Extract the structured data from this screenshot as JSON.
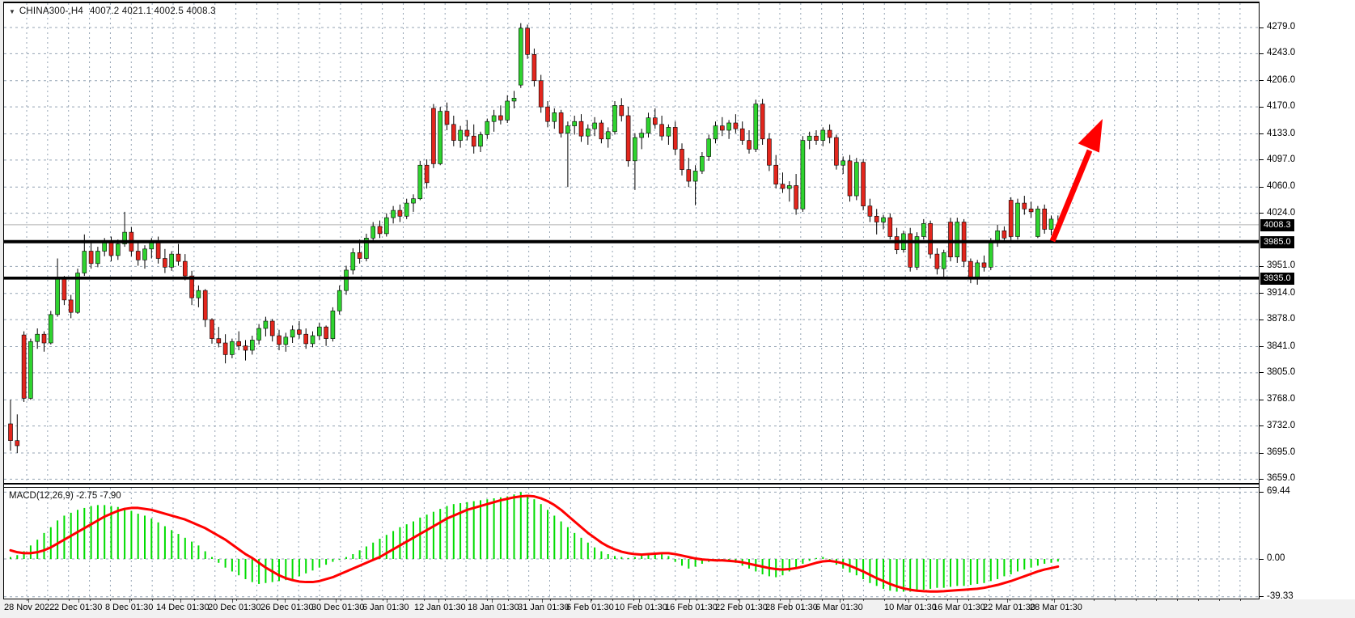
{
  "header": {
    "dropdown_icon": "▼",
    "symbol_period": "CHINA300-,H4",
    "ohlc_line": "4007.2 4021.1 4002.5 4008.3",
    "open": "4007.2",
    "high": "4021.1",
    "low": "4002.5",
    "close": "4008.3"
  },
  "macd_panel": {
    "label": "MACD(12,26,9) -2.75 -7.90",
    "indicator_name": "MACD(12,26,9)",
    "macd_value": "-2.75",
    "signal_value": "-7.90",
    "axis_labels": [
      "69.44",
      "0.00",
      "-39.33"
    ],
    "axis_values": [
      69.44,
      0.0,
      -39.33
    ]
  },
  "price_axis": {
    "tick_values": [
      4279.0,
      4243.0,
      4206.0,
      4170.0,
      4133.0,
      4097.0,
      4060.0,
      4024.0,
      3951.0,
      3914.0,
      3878.0,
      3841.0,
      3805.0,
      3768.0,
      3732.0,
      3695.0,
      3659.0
    ],
    "tags": [
      {
        "label": "4008.3",
        "value": 4008.3,
        "kind": "current-price"
      },
      {
        "label": "3985.0",
        "value": 3985.0,
        "kind": "horizontal-line"
      },
      {
        "label": "3935.0",
        "value": 3935.0,
        "kind": "horizontal-line"
      }
    ]
  },
  "annotations": {
    "hlines": [
      3985.0,
      3935.0
    ],
    "current_price": 4008.3,
    "arrow": {
      "description": "red up-trend arrow",
      "color": "#ff0000",
      "from_price": 3982,
      "to_price": 4152
    }
  },
  "colors": {
    "bull": "#2fd32f",
    "bear": "#e3261d",
    "candle_border": "#000000",
    "wick": "#000000",
    "grid": "#94a3b3",
    "hline": "#000000",
    "price_line": "#b0b0b0",
    "macd_hist": "#00dd00",
    "macd_signal": "#ff0000",
    "arrow": "#ff0000",
    "tag_bg": "#000000",
    "tag_fg": "#ffffff"
  },
  "chart_data": {
    "type": "candlestick+macd",
    "title": "CHINA300-,H4",
    "timeframe": "H4",
    "ylabel_right_main": "price",
    "ylabel_right_macd": "MACD",
    "main_axis_range": [
      3659.0,
      4279.0
    ],
    "macd_axis_range": [
      -39.33,
      69.44
    ],
    "x_labels": [
      "28 Nov 2022",
      "2 Dec 01:30",
      "8 Dec 01:30",
      "14 Dec 01:30",
      "20 Dec 01:30",
      "26 Dec 01:30",
      "30 Dec 01:30",
      "6 Jan 01:30",
      "12 Jan 01:30",
      "18 Jan 01:30",
      "31 Jan 01:30",
      "6 Feb 01:30",
      "10 Feb 01:30",
      "16 Feb 01:30",
      "22 Feb 01:30",
      "28 Feb 01:30",
      "6 Mar 01:30",
      "10 Mar 01:30",
      "16 Mar 01:30",
      "22 Mar 01:30",
      "28 Mar 01:30"
    ],
    "candles_ohlc": [
      [
        3735,
        3768,
        3698,
        3712
      ],
      [
        3712,
        3748,
        3695,
        3705
      ],
      [
        3857,
        3862,
        3765,
        3770
      ],
      [
        3770,
        3852,
        3768,
        3848
      ],
      [
        3848,
        3866,
        3838,
        3858
      ],
      [
        3858,
        3862,
        3834,
        3846
      ],
      [
        3846,
        3890,
        3844,
        3885
      ],
      [
        3885,
        3962,
        3882,
        3936
      ],
      [
        3936,
        3938,
        3898,
        3905
      ],
      [
        3905,
        3912,
        3880,
        3888
      ],
      [
        3888,
        3948,
        3886,
        3942
      ],
      [
        3942,
        3995,
        3938,
        3972
      ],
      [
        3972,
        3985,
        3948,
        3955
      ],
      [
        3955,
        3978,
        3950,
        3972
      ],
      [
        3972,
        3990,
        3965,
        3985
      ],
      [
        3985,
        3992,
        3958,
        3966
      ],
      [
        3966,
        3988,
        3960,
        3982
      ],
      [
        3982,
        4026,
        3978,
        3998
      ],
      [
        3998,
        4005,
        3965,
        3972
      ],
      [
        3972,
        3985,
        3952,
        3960
      ],
      [
        3960,
        3980,
        3948,
        3975
      ],
      [
        3975,
        3990,
        3962,
        3985
      ],
      [
        3985,
        3992,
        3955,
        3962
      ],
      [
        3962,
        3975,
        3942,
        3950
      ],
      [
        3950,
        3972,
        3945,
        3968
      ],
      [
        3968,
        3982,
        3952,
        3958
      ],
      [
        3958,
        3968,
        3932,
        3938
      ],
      [
        3938,
        3945,
        3898,
        3908
      ],
      [
        3908,
        3925,
        3895,
        3918
      ],
      [
        3918,
        3920,
        3868,
        3878
      ],
      [
        3878,
        3880,
        3845,
        3852
      ],
      [
        3852,
        3868,
        3840,
        3846
      ],
      [
        3846,
        3858,
        3818,
        3830
      ],
      [
        3830,
        3852,
        3825,
        3848
      ],
      [
        3848,
        3862,
        3836,
        3842
      ],
      [
        3842,
        3850,
        3822,
        3836
      ],
      [
        3836,
        3856,
        3830,
        3850
      ],
      [
        3850,
        3872,
        3844,
        3866
      ],
      [
        3866,
        3882,
        3855,
        3876
      ],
      [
        3876,
        3879,
        3848,
        3856
      ],
      [
        3856,
        3864,
        3836,
        3844
      ],
      [
        3844,
        3860,
        3834,
        3854
      ],
      [
        3854,
        3870,
        3846,
        3864
      ],
      [
        3864,
        3876,
        3852,
        3858
      ],
      [
        3858,
        3866,
        3838,
        3845
      ],
      [
        3845,
        3862,
        3840,
        3856
      ],
      [
        3856,
        3874,
        3850,
        3868
      ],
      [
        3868,
        3870,
        3842,
        3852
      ],
      [
        3852,
        3895,
        3848,
        3890
      ],
      [
        3890,
        3925,
        3885,
        3918
      ],
      [
        3918,
        3952,
        3912,
        3946
      ],
      [
        3946,
        3976,
        3940,
        3970
      ],
      [
        3970,
        3988,
        3955,
        3962
      ],
      [
        3962,
        3996,
        3958,
        3990
      ],
      [
        3990,
        4012,
        3984,
        4006
      ],
      [
        4006,
        4014,
        3990,
        3996
      ],
      [
        3996,
        4024,
        3992,
        4018
      ],
      [
        4018,
        4034,
        4010,
        4028
      ],
      [
        4028,
        4036,
        4012,
        4020
      ],
      [
        4020,
        4044,
        4016,
        4038
      ],
      [
        4038,
        4050,
        4026,
        4044
      ],
      [
        4044,
        4096,
        4042,
        4090
      ],
      [
        4090,
        4098,
        4058,
        4066
      ],
      [
        4168,
        4174,
        4086,
        4092
      ],
      [
        4092,
        4170,
        4090,
        4164
      ],
      [
        4164,
        4176,
        4138,
        4146
      ],
      [
        4146,
        4158,
        4116,
        4124
      ],
      [
        4124,
        4144,
        4114,
        4138
      ],
      [
        4138,
        4152,
        4124,
        4130
      ],
      [
        4130,
        4146,
        4106,
        4116
      ],
      [
        4116,
        4136,
        4108,
        4132
      ],
      [
        4132,
        4154,
        4126,
        4150
      ],
      [
        4150,
        4166,
        4136,
        4158
      ],
      [
        4158,
        4172,
        4146,
        4152
      ],
      [
        4152,
        4186,
        4148,
        4178
      ],
      [
        4178,
        4192,
        4168,
        4182
      ],
      [
        4200,
        4285,
        4196,
        4278
      ],
      [
        4278,
        4283,
        4236,
        4242
      ],
      [
        4242,
        4250,
        4198,
        4206
      ],
      [
        4206,
        4214,
        4162,
        4170
      ],
      [
        4170,
        4178,
        4142,
        4150
      ],
      [
        4150,
        4168,
        4140,
        4162
      ],
      [
        4162,
        4166,
        4128,
        4134
      ],
      [
        4134,
        4150,
        4060,
        4144
      ],
      [
        4144,
        4158,
        4132,
        4150
      ],
      [
        4150,
        4160,
        4122,
        4130
      ],
      [
        4130,
        4146,
        4118,
        4140
      ],
      [
        4140,
        4156,
        4130,
        4148
      ],
      [
        4148,
        4152,
        4120,
        4126
      ],
      [
        4126,
        4142,
        4114,
        4136
      ],
      [
        4136,
        4178,
        4132,
        4172
      ],
      [
        4172,
        4182,
        4150,
        4158
      ],
      [
        4158,
        4170,
        4088,
        4096
      ],
      [
        4096,
        4134,
        4056,
        4128
      ],
      [
        4128,
        4140,
        4112,
        4134
      ],
      [
        4134,
        4162,
        4128,
        4155
      ],
      [
        4155,
        4168,
        4140,
        4146
      ],
      [
        4146,
        4158,
        4124,
        4130
      ],
      [
        4130,
        4146,
        4118,
        4142
      ],
      [
        4142,
        4150,
        4104,
        4112
      ],
      [
        4112,
        4120,
        4076,
        4084
      ],
      [
        4084,
        4100,
        4060,
        4068
      ],
      [
        4068,
        4090,
        4035,
        4082
      ],
      [
        4082,
        4108,
        4078,
        4102
      ],
      [
        4102,
        4132,
        4096,
        4126
      ],
      [
        4126,
        4150,
        4120,
        4144
      ],
      [
        4144,
        4156,
        4130,
        4138
      ],
      [
        4138,
        4152,
        4126,
        4148
      ],
      [
        4148,
        4160,
        4134,
        4140
      ],
      [
        4140,
        4150,
        4118,
        4124
      ],
      [
        4124,
        4138,
        4106,
        4112
      ],
      [
        4112,
        4180,
        4108,
        4174
      ],
      [
        4174,
        4181,
        4118,
        4126
      ],
      [
        4126,
        4134,
        4082,
        4090
      ],
      [
        4090,
        4104,
        4058,
        4064
      ],
      [
        4064,
        4080,
        4052,
        4058
      ],
      [
        4058,
        4068,
        4040,
        4062
      ],
      [
        4062,
        4078,
        4022,
        4030
      ],
      [
        4030,
        4130,
        4026,
        4124
      ],
      [
        4124,
        4136,
        4112,
        4130
      ],
      [
        4130,
        4138,
        4118,
        4124
      ],
      [
        4124,
        4142,
        4116,
        4138
      ],
      [
        4138,
        4146,
        4120,
        4128
      ],
      [
        4128,
        4132,
        4084,
        4090
      ],
      [
        4090,
        4102,
        4078,
        4096
      ],
      [
        4096,
        4104,
        4040,
        4048
      ],
      [
        4048,
        4100,
        4042,
        4094
      ],
      [
        4094,
        4098,
        4028,
        4034
      ],
      [
        4034,
        4044,
        4012,
        4020
      ],
      [
        4020,
        4030,
        3995,
        4012
      ],
      [
        4012,
        4022,
        4002,
        4018
      ],
      [
        4018,
        4024,
        3988,
        3992
      ],
      [
        3992,
        4004,
        3968,
        3974
      ],
      [
        3974,
        4000,
        3970,
        3996
      ],
      [
        3996,
        4004,
        3944,
        3950
      ],
      [
        3950,
        3998,
        3946,
        3992
      ],
      [
        3992,
        4016,
        3988,
        4010
      ],
      [
        4010,
        4014,
        3962,
        3968
      ],
      [
        3968,
        3976,
        3940,
        3948
      ],
      [
        3948,
        3974,
        3936,
        3970
      ],
      [
        4012,
        4018,
        3958,
        3964
      ],
      [
        3964,
        4018,
        3956,
        4012
      ],
      [
        4012,
        4016,
        3950,
        3958
      ],
      [
        3958,
        3962,
        3928,
        3936
      ],
      [
        3936,
        3960,
        3926,
        3956
      ],
      [
        3956,
        3966,
        3944,
        3950
      ],
      [
        3950,
        3990,
        3946,
        3985
      ],
      [
        3985,
        4008,
        3978,
        4000
      ],
      [
        4000,
        4006,
        3984,
        3990
      ],
      [
        4042,
        4046,
        3986,
        3992
      ],
      [
        3992,
        4044,
        3988,
        4038
      ],
      [
        4038,
        4048,
        4022,
        4030
      ],
      [
        4030,
        4040,
        4018,
        4026
      ],
      [
        3992,
        4034,
        3990,
        4030
      ],
      [
        4030,
        4036,
        3996,
        4002
      ],
      [
        4002,
        4021,
        3994,
        4016
      ],
      [
        4007,
        4021,
        4002,
        4008
      ]
    ],
    "macd_histogram": [
      2,
      4,
      8,
      14,
      20,
      27,
      33,
      40,
      45,
      48,
      51,
      53,
      55,
      56,
      56,
      55,
      54,
      52,
      50,
      47,
      45,
      42,
      38,
      34,
      30,
      26,
      22,
      18,
      14,
      8,
      2,
      -4,
      -9,
      -13,
      -17,
      -21,
      -24,
      -26,
      -25,
      -24,
      -23,
      -22,
      -21,
      -18,
      -15,
      -12,
      -9,
      -6,
      -3,
      -1,
      2,
      5,
      9,
      13,
      17,
      21,
      25,
      29,
      33,
      36,
      39,
      43,
      46,
      49,
      52,
      55,
      57,
      58,
      59,
      60,
      61,
      62,
      63,
      64,
      65,
      67,
      69.44,
      66,
      62,
      57,
      51,
      45,
      39,
      33,
      27,
      22,
      17,
      12,
      8,
      5,
      3,
      2,
      1,
      2,
      4,
      5,
      6,
      5,
      3,
      -3,
      -7,
      -10,
      -8,
      -5,
      -3,
      -2,
      -1,
      -2,
      -4,
      -7,
      -10,
      -13,
      -16,
      -18,
      -19,
      -17,
      -13,
      -9,
      -5,
      -2,
      1,
      2,
      -2,
      -6,
      -10,
      -14,
      -17,
      -21,
      -25,
      -28,
      -31,
      -33,
      -34,
      -34,
      -34,
      -33,
      -32,
      -31,
      -30,
      -30,
      -29,
      -28,
      -28,
      -27,
      -26,
      -25,
      -23,
      -21,
      -18,
      -16,
      -13,
      -11,
      -9,
      -7,
      -5,
      -4,
      -2.75
    ],
    "macd_signal": [
      9,
      7,
      6,
      6,
      7,
      9,
      12,
      16,
      20,
      24,
      28,
      32,
      36,
      40,
      44,
      47,
      50,
      52,
      53,
      53,
      52,
      51,
      49,
      47,
      45,
      43,
      41,
      38,
      35,
      32,
      28,
      24,
      20,
      15,
      10,
      5,
      1,
      -4,
      -9,
      -13,
      -17,
      -20,
      -22,
      -23.5,
      -24,
      -24,
      -23,
      -21,
      -19,
      -16,
      -13,
      -10,
      -7,
      -4,
      -1,
      2,
      6,
      10,
      14,
      18,
      22,
      26,
      30,
      34,
      38,
      42,
      45,
      48,
      51,
      53,
      55,
      57,
      59,
      61,
      62.5,
      64,
      65,
      65.5,
      65,
      63,
      60,
      56,
      51,
      45,
      39,
      33,
      27,
      22,
      17,
      13,
      10,
      7.5,
      6,
      5,
      4.5,
      5,
      5.5,
      6,
      6,
      5,
      3.5,
      2,
      0.5,
      -0.5,
      -1,
      -1.5,
      -1.5,
      -2,
      -2.5,
      -3.5,
      -5,
      -6.5,
      -8,
      -9.5,
      -10.5,
      -11,
      -10.5,
      -9.5,
      -8,
      -6,
      -4,
      -2.5,
      -2,
      -3,
      -4.5,
      -7,
      -10,
      -13,
      -16.5,
      -20,
      -23,
      -26,
      -28.5,
      -30.5,
      -32,
      -33,
      -33.5,
      -33.8,
      -33.8,
      -33.5,
      -33,
      -32.5,
      -32,
      -31.5,
      -31,
      -30,
      -28.5,
      -27,
      -25,
      -23,
      -20.5,
      -18,
      -15.5,
      -13,
      -11,
      -9.5,
      -7.9
    ]
  }
}
